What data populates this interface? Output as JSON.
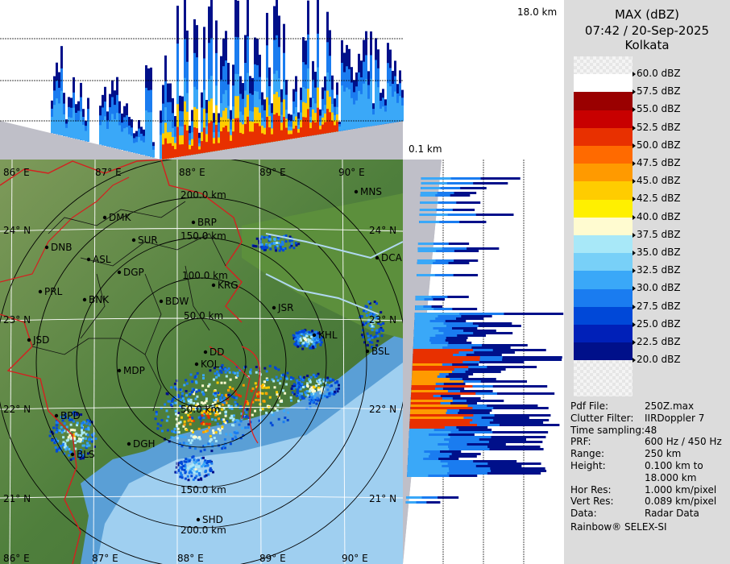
{
  "header": {
    "product": "MAX (dBZ)",
    "datetime": "07:42 / 20-Sep-2025",
    "station": "Kolkata"
  },
  "height_labels": {
    "top": "18.0 km",
    "bottom": "0.1 km"
  },
  "scale": [
    {
      "label": "60.0 dBZ",
      "color": "checker"
    },
    {
      "label": "57.5 dBZ",
      "color": "#ffffff"
    },
    {
      "label": "55.0 dBZ",
      "color": "#9a0000"
    },
    {
      "label": "52.5 dBZ",
      "color": "#c80000"
    },
    {
      "label": "50.0 dBZ",
      "color": "#e83000"
    },
    {
      "label": "47.5 dBZ",
      "color": "#ff6a00"
    },
    {
      "label": "45.0 dBZ",
      "color": "#ff9a00"
    },
    {
      "label": "42.5 dBZ",
      "color": "#ffcc00"
    },
    {
      "label": "40.0 dBZ",
      "color": "#fff000"
    },
    {
      "label": "37.5 dBZ",
      "color": "#fffbd0"
    },
    {
      "label": "35.0 dBZ",
      "color": "#a8e8f8"
    },
    {
      "label": "32.5 dBZ",
      "color": "#78d0f8"
    },
    {
      "label": "30.0 dBZ",
      "color": "#3aa8f8"
    },
    {
      "label": "27.5 dBZ",
      "color": "#1a7cf0"
    },
    {
      "label": "25.0 dBZ",
      "color": "#0048d8"
    },
    {
      "label": "22.5 dBZ",
      "color": "#0020b8"
    },
    {
      "label": "20.0 dBZ",
      "color": "#00108a"
    }
  ],
  "info": [
    {
      "key": "Pdf File:",
      "value": "250Z.max"
    },
    {
      "key": "Clutter Filter:",
      "value": "IIRDoppler 7"
    },
    {
      "key": "Time sampling:",
      "value": "48"
    },
    {
      "key": "PRF:",
      "value": "600 Hz / 450 Hz"
    },
    {
      "key": "Range:",
      "value": "250 km"
    },
    {
      "key": "Height:",
      "value": "0.100 km to"
    },
    {
      "key": "",
      "value": "18.000 km"
    },
    {
      "key": "Hor Res:",
      "value": "1.000 km/pixel"
    },
    {
      "key": "Vert Res:",
      "value": "0.089 km/pixel"
    },
    {
      "key": "Data:",
      "value": "Radar Data"
    }
  ],
  "footer": "Rainbow® SELEX-SI",
  "map": {
    "lon_labels": [
      "86° E",
      "87° E",
      "88° E",
      "89° E",
      "90° E"
    ],
    "lat_labels": [
      "24° N",
      "23° N",
      "22° N",
      "21° N"
    ],
    "range_rings": [
      "50.0 km",
      "100.0 km",
      "150.0 km",
      "200.0 km"
    ],
    "cities": [
      {
        "name": "MNS"
      },
      {
        "name": "DMK"
      },
      {
        "name": "BRP"
      },
      {
        "name": "SUR"
      },
      {
        "name": "DNB"
      },
      {
        "name": "ASL"
      },
      {
        "name": "DGP"
      },
      {
        "name": "DCA"
      },
      {
        "name": "KRG"
      },
      {
        "name": "PRL"
      },
      {
        "name": "BNK"
      },
      {
        "name": "BDW"
      },
      {
        "name": "JSR"
      },
      {
        "name": "KHL"
      },
      {
        "name": "JSD"
      },
      {
        "name": "BSL"
      },
      {
        "name": "DD"
      },
      {
        "name": "MDP"
      },
      {
        "name": "KOL"
      },
      {
        "name": "BPD"
      },
      {
        "name": "DGH"
      },
      {
        "name": "BLS"
      },
      {
        "name": "SHD"
      }
    ]
  }
}
